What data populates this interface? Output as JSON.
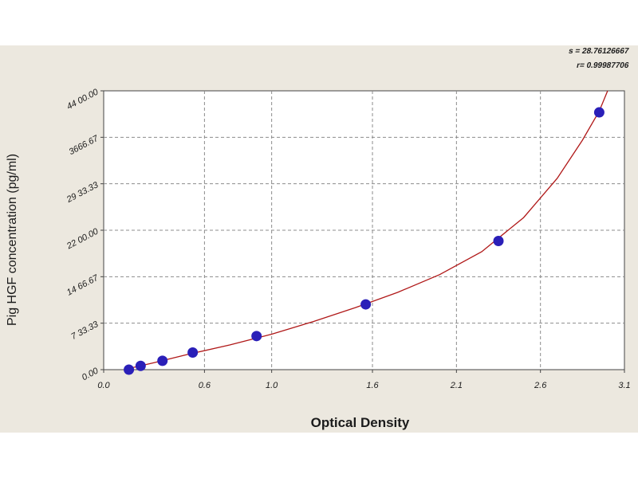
{
  "chart_data": {
    "type": "scatter",
    "xlabel": "Optical Density",
    "ylabel": "Pig HGF concentration (pg/ml)",
    "x_ticks": [
      "0.0",
      "0.6",
      "1.0",
      "1.6",
      "2.1",
      "2.6",
      "3.1"
    ],
    "y_ticks": [
      "0.00",
      "733.33",
      "1466.67",
      "2200.00",
      "2933.33",
      "3666.67",
      "4400.00"
    ],
    "x_tick_labels": [
      "0.0",
      "0.6",
      "1.0",
      "1.6",
      "2.1",
      "2.6",
      "3.1"
    ],
    "y_tick_labels": [
      "0.00",
      "7 33.33",
      "14 66.67",
      "22 00.00",
      "29 33.33",
      "3666.67",
      "44 00.00"
    ],
    "xlim": [
      0,
      3.1
    ],
    "ylim": [
      0,
      4400
    ],
    "grid": true,
    "points": [
      {
        "x": 0.15,
        "y": 0
      },
      {
        "x": 0.22,
        "y": 60
      },
      {
        "x": 0.35,
        "y": 140
      },
      {
        "x": 0.53,
        "y": 270
      },
      {
        "x": 0.91,
        "y": 530
      },
      {
        "x": 1.56,
        "y": 1030
      },
      {
        "x": 2.35,
        "y": 2030
      },
      {
        "x": 2.95,
        "y": 4060
      }
    ],
    "curve": [
      {
        "x": 0.12,
        "y": 0
      },
      {
        "x": 0.3,
        "y": 110
      },
      {
        "x": 0.5,
        "y": 240
      },
      {
        "x": 0.75,
        "y": 390
      },
      {
        "x": 1.0,
        "y": 560
      },
      {
        "x": 1.25,
        "y": 760
      },
      {
        "x": 1.5,
        "y": 980
      },
      {
        "x": 1.75,
        "y": 1220
      },
      {
        "x": 2.0,
        "y": 1500
      },
      {
        "x": 2.25,
        "y": 1860
      },
      {
        "x": 2.5,
        "y": 2400
      },
      {
        "x": 2.7,
        "y": 3020
      },
      {
        "x": 2.85,
        "y": 3620
      },
      {
        "x": 2.95,
        "y": 4080
      },
      {
        "x": 3.0,
        "y": 4400
      }
    ],
    "stats": {
      "s_label": "s = 28.76126667",
      "r_label": "r= 0.99987706"
    },
    "colors": {
      "background": "#ece8df",
      "plot_area": "#ffffff",
      "grid": "#8c8c8c",
      "curve": "#b01818",
      "point": "#2a1fb8",
      "axis": "#444444",
      "text": "#1b1b1b"
    }
  }
}
